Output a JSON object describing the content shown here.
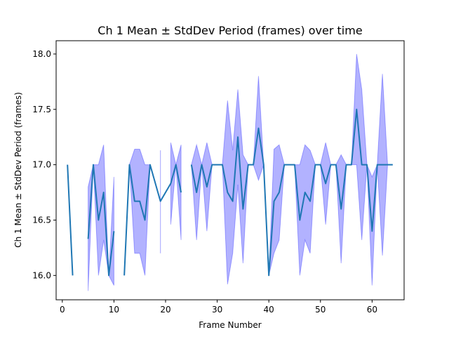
{
  "chart_data": {
    "type": "line",
    "title": "Ch 1 Mean ± StdDev Period (frames) over time",
    "xlabel": "Frame Number",
    "ylabel": "Ch 1 Mean ± StdDev Period (frames)",
    "xlim": [
      -1.2,
      66.2
    ],
    "ylim": [
      15.78,
      18.12
    ],
    "xticks": [
      0,
      10,
      20,
      30,
      40,
      50,
      60
    ],
    "xtick_labels": [
      "0",
      "10",
      "20",
      "30",
      "40",
      "50",
      "60"
    ],
    "yticks": [
      16.0,
      16.5,
      17.0,
      17.5,
      18.0
    ],
    "ytick_labels": [
      "16.0",
      "16.5",
      "17.0",
      "17.5",
      "18.0"
    ],
    "grid": false,
    "legend": false,
    "colors": {
      "line": "#1f77b4",
      "band_fill": "#0000ff",
      "band_opacity": 0.3
    },
    "series": [
      {
        "role": "mean",
        "points": [
          [
            1,
            17.0
          ],
          [
            2,
            16.0
          ],
          [
            5,
            16.33
          ],
          [
            6,
            17.0
          ],
          [
            7,
            16.5
          ],
          [
            8,
            16.75
          ],
          [
            9,
            16.0
          ],
          [
            10,
            16.4
          ],
          [
            12,
            16.0
          ],
          [
            13,
            17.0
          ],
          [
            14,
            16.67
          ],
          [
            15,
            16.67
          ],
          [
            16,
            16.5
          ],
          [
            17,
            17.0
          ],
          [
            19,
            16.67
          ],
          [
            21,
            16.83
          ],
          [
            22,
            17.0
          ],
          [
            23,
            16.75
          ],
          [
            25,
            17.0
          ],
          [
            26,
            16.75
          ],
          [
            27,
            17.0
          ],
          [
            28,
            16.8
          ],
          [
            29,
            17.0
          ],
          [
            30,
            17.0
          ],
          [
            31,
            17.0
          ],
          [
            32,
            16.75
          ],
          [
            33,
            16.67
          ],
          [
            34,
            17.25
          ],
          [
            35,
            16.6
          ],
          [
            36,
            17.0
          ],
          [
            37,
            17.0
          ],
          [
            38,
            17.33
          ],
          [
            39,
            17.0
          ],
          [
            40,
            16.0
          ],
          [
            41,
            16.67
          ],
          [
            42,
            16.75
          ],
          [
            43,
            17.0
          ],
          [
            44,
            17.0
          ],
          [
            45,
            17.0
          ],
          [
            46,
            16.5
          ],
          [
            47,
            16.75
          ],
          [
            48,
            16.67
          ],
          [
            49,
            17.0
          ],
          [
            50,
            17.0
          ],
          [
            51,
            16.83
          ],
          [
            52,
            17.0
          ],
          [
            53,
            17.0
          ],
          [
            54,
            16.6
          ],
          [
            55,
            17.0
          ],
          [
            56,
            17.0
          ],
          [
            57,
            17.5
          ],
          [
            58,
            17.0
          ],
          [
            59,
            17.0
          ],
          [
            60,
            16.4
          ],
          [
            61,
            17.0
          ],
          [
            62,
            17.0
          ],
          [
            63,
            17.0
          ],
          [
            64,
            17.0
          ]
        ]
      },
      {
        "role": "std_band",
        "points": [
          [
            1,
            17.0,
            17.0
          ],
          [
            2,
            16.0,
            16.0
          ],
          [
            5,
            15.86,
            16.8
          ],
          [
            6,
            17.0,
            17.0
          ],
          [
            7,
            16.0,
            17.0
          ],
          [
            8,
            16.32,
            17.18
          ],
          [
            9,
            16.0,
            16.0
          ],
          [
            10,
            15.91,
            16.89
          ],
          [
            12,
            16.0,
            16.0
          ],
          [
            13,
            17.0,
            17.0
          ],
          [
            14,
            16.2,
            17.14
          ],
          [
            15,
            16.2,
            17.14
          ],
          [
            16,
            16.0,
            17.0
          ],
          [
            17,
            17.0,
            17.0
          ],
          [
            19,
            16.2,
            17.13
          ],
          [
            21,
            16.46,
            17.2
          ],
          [
            22,
            17.0,
            17.0
          ],
          [
            23,
            16.32,
            17.18
          ],
          [
            25,
            17.0,
            17.0
          ],
          [
            26,
            16.32,
            17.18
          ],
          [
            27,
            17.0,
            17.0
          ],
          [
            28,
            16.4,
            17.2
          ],
          [
            29,
            17.0,
            17.0
          ],
          [
            30,
            17.0,
            17.0
          ],
          [
            31,
            17.0,
            17.0
          ],
          [
            32,
            15.92,
            17.58
          ],
          [
            33,
            16.2,
            17.13
          ],
          [
            34,
            16.82,
            17.68
          ],
          [
            35,
            16.11,
            17.09
          ],
          [
            36,
            17.0,
            17.0
          ],
          [
            37,
            17.0,
            17.0
          ],
          [
            38,
            16.86,
            17.8
          ],
          [
            39,
            17.0,
            17.0
          ],
          [
            40,
            16.0,
            16.0
          ],
          [
            41,
            16.2,
            17.14
          ],
          [
            42,
            16.32,
            17.18
          ],
          [
            43,
            17.0,
            17.0
          ],
          [
            44,
            17.0,
            17.0
          ],
          [
            45,
            17.0,
            17.0
          ],
          [
            46,
            16.0,
            17.0
          ],
          [
            47,
            16.32,
            17.18
          ],
          [
            48,
            16.2,
            17.13
          ],
          [
            49,
            17.0,
            17.0
          ],
          [
            50,
            17.0,
            17.0
          ],
          [
            51,
            16.46,
            17.2
          ],
          [
            52,
            17.0,
            17.0
          ],
          [
            53,
            17.0,
            17.0
          ],
          [
            54,
            16.11,
            17.09
          ],
          [
            55,
            17.0,
            17.0
          ],
          [
            56,
            17.0,
            17.0
          ],
          [
            57,
            17.0,
            18.0
          ],
          [
            58,
            16.32,
            17.68
          ],
          [
            59,
            17.0,
            17.0
          ],
          [
            60,
            15.91,
            16.89
          ],
          [
            61,
            17.0,
            17.0
          ],
          [
            62,
            16.18,
            17.82
          ],
          [
            63,
            17.0,
            17.0
          ],
          [
            64,
            17.0,
            17.0
          ]
        ],
        "band_gaps": [
          [
            2,
            5
          ],
          [
            10,
            12
          ],
          [
            17,
            19
          ],
          [
            19,
            21
          ],
          [
            23,
            25
          ]
        ]
      }
    ],
    "mean_gaps": [
      [
        2,
        5
      ],
      [
        10,
        12
      ],
      [
        17,
        21
      ],
      [
        23,
        25
      ]
    ]
  }
}
